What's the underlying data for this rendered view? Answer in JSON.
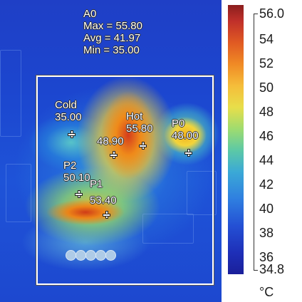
{
  "area": {
    "name": "A0",
    "max_line": "Max = 55.80",
    "avg_line": "Avg = 41.97",
    "min_line": "Min = 35.00"
  },
  "spots": [
    {
      "name": "Cold",
      "value": "35.00"
    },
    {
      "name": "Hot",
      "value": "55.80"
    },
    {
      "name": "P0",
      "value": "48.00"
    },
    {
      "name": "P2",
      "value": "50.10"
    },
    {
      "name": "P1",
      "value": "53.40"
    },
    {
      "name": "",
      "value": "48.90"
    }
  ],
  "scale": {
    "max": "56.0",
    "min": "34.8",
    "ticks": [
      "54",
      "52",
      "50",
      "48",
      "46",
      "44",
      "42",
      "40",
      "38",
      "36"
    ],
    "unit": "°C",
    "colors": {
      "hot": "#8b1e1e",
      "mid": "#e8de4a",
      "cold": "#1a1f9a"
    }
  }
}
